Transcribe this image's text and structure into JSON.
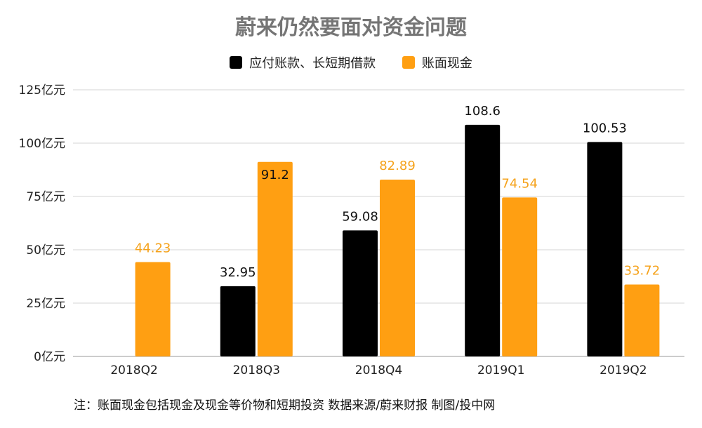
{
  "chart_data": {
    "type": "bar",
    "title": "蔚来仍然要面对资金问题",
    "categories": [
      "2018Q2",
      "2018Q3",
      "2018Q4",
      "2019Q1",
      "2019Q2"
    ],
    "series": [
      {
        "name": "应付账款、长短期借款",
        "color": "#000000",
        "labelColor": "#111111",
        "values": [
          null,
          32.95,
          59.08,
          108.6,
          100.53
        ],
        "labels": [
          "",
          "32.95",
          "59.08",
          "108.6",
          "100.53"
        ]
      },
      {
        "name": "账面现金",
        "color": "#ff9f12",
        "labelColor": "#f5a21b",
        "values": [
          44.23,
          91.2,
          82.89,
          74.54,
          33.72
        ],
        "labels": [
          "44.23",
          "91.2",
          "82.89",
          "74.54",
          "33.72"
        ]
      }
    ],
    "ylim": [
      0,
      125
    ],
    "yticks": [
      {
        "value": 0,
        "label": "0亿元"
      },
      {
        "value": 25,
        "label": "25亿元"
      },
      {
        "value": 50,
        "label": "50亿元"
      },
      {
        "value": 75,
        "label": "75亿元"
      },
      {
        "value": 100,
        "label": "100亿元"
      },
      {
        "value": 125,
        "label": "125亿元"
      }
    ],
    "grid": true,
    "legend_position": "top-center",
    "xlabel": "",
    "ylabel": ""
  },
  "footnote": "注：账面现金包括现金及现金等价物和短期投资  数据来源/蔚来财报   制图/投中网"
}
